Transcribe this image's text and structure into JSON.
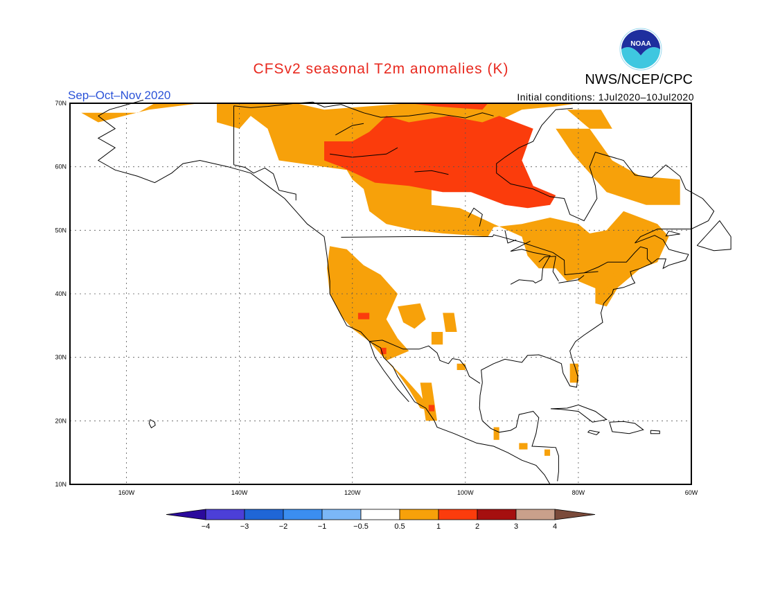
{
  "title": "CFSv2 seasonal T2m anomalies (K)",
  "agency": "NWS/NCEP/CPC",
  "logo_text": "NOAA",
  "season": "Sep–Oct–Nov 2020",
  "initial_conditions": "Initial conditions: 1Jul2020–10Jul2020",
  "colors": {
    "title": "#e8281e",
    "season": "#2a52d8",
    "frame": "#000000",
    "anomaly_0_5_to_1": "#f7a10a",
    "anomaly_1_to_2": "#fb3c0c"
  },
  "map": {
    "lat_labels": [
      "70N",
      "60N",
      "50N",
      "40N",
      "30N",
      "20N",
      "10N"
    ],
    "lon_labels": [
      "160W",
      "140W",
      "120W",
      "100W",
      "80W",
      "60W"
    ]
  },
  "colorbar": {
    "bins": [
      {
        "color": "#2b0a9c"
      },
      {
        "color": "#4c3fd8"
      },
      {
        "color": "#1f66d6"
      },
      {
        "color": "#3b8ef0"
      },
      {
        "color": "#7bb7f7"
      },
      {
        "color": "#ffffff"
      },
      {
        "color": "#f7a10a"
      },
      {
        "color": "#fb3c0c"
      },
      {
        "color": "#a50f0f"
      },
      {
        "color": "#c9a08b"
      },
      {
        "color": "#7a4a3a"
      }
    ],
    "labels": [
      "−4",
      "−3",
      "−2",
      "−1",
      "−0.5",
      "0.5",
      "1",
      "2",
      "3",
      "4"
    ]
  }
}
